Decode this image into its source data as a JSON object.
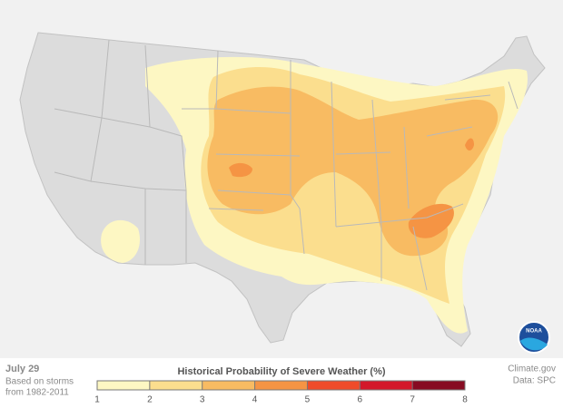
{
  "map": {
    "date": "July 29",
    "note_lines": [
      "Based on storms",
      "from 1982-2011"
    ],
    "legend": {
      "title": "Historical Probability of Severe Weather (%)",
      "ticks": [
        1,
        2,
        3,
        4,
        5,
        6,
        7,
        8
      ],
      "colors": [
        "#fdf7c3",
        "#fbde8e",
        "#f8bb62",
        "#f59444",
        "#ef4b2a",
        "#d3182a",
        "#870b22"
      ]
    },
    "credits": [
      "Climate.gov",
      "Data: SPC"
    ],
    "logo": "NOAA"
  }
}
